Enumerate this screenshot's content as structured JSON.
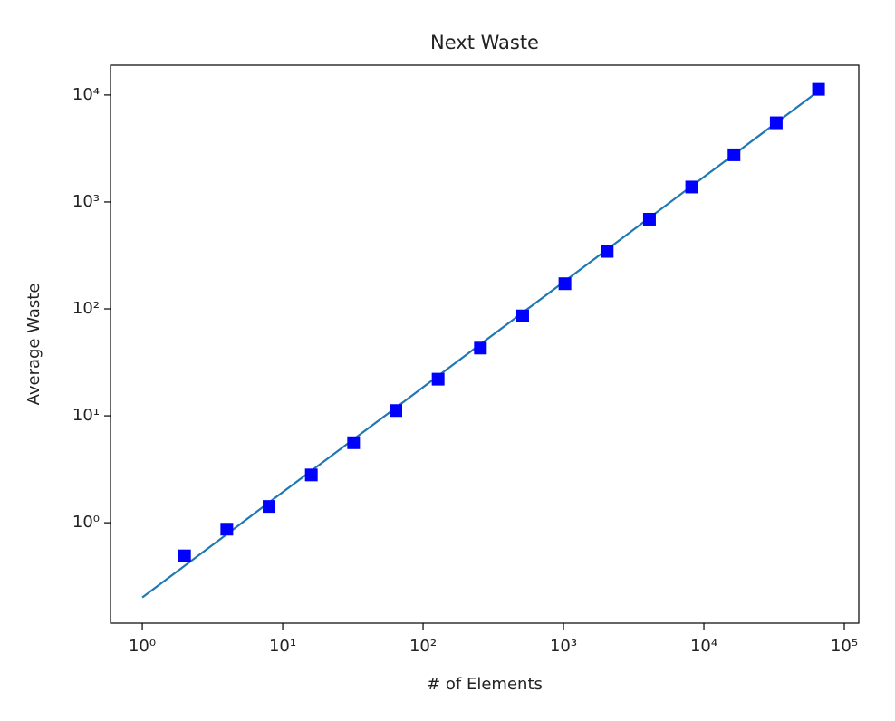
{
  "chart_data": {
    "type": "line",
    "title": "Next Waste",
    "xlabel": "# of Elements",
    "ylabel": "Average Waste",
    "xscale": "log",
    "yscale": "log",
    "xlim": [
      0.594,
      126800
    ],
    "ylim": [
      0.115,
      19000
    ],
    "xticks": [
      {
        "value": 1,
        "label": "10⁰"
      },
      {
        "value": 10,
        "label": "10¹"
      },
      {
        "value": 100,
        "label": "10²"
      },
      {
        "value": 1000,
        "label": "10³"
      },
      {
        "value": 10000,
        "label": "10⁴"
      },
      {
        "value": 100000,
        "label": "10⁵"
      }
    ],
    "yticks": [
      {
        "value": 1,
        "label": "10⁰"
      },
      {
        "value": 10,
        "label": "10¹"
      },
      {
        "value": 100,
        "label": "10²"
      },
      {
        "value": 1000,
        "label": "10³"
      },
      {
        "value": 10000,
        "label": "10⁴"
      }
    ],
    "series": [
      {
        "type": "line",
        "color": "#1f77b4",
        "x": [
          1,
          2,
          4,
          8,
          16,
          32,
          64,
          128,
          256,
          512,
          1024,
          2048,
          4096,
          8192,
          16384,
          32768,
          65536
        ],
        "values": [
          0.2,
          0.395,
          0.78,
          1.55,
          3.06,
          6.04,
          11.9,
          23.6,
          46.7,
          92.3,
          182,
          360,
          712,
          1410,
          2780,
          5500,
          10900
        ]
      },
      {
        "type": "scatter",
        "marker": "square",
        "color": "#0000ff",
        "x": [
          2,
          4,
          8,
          16,
          32,
          64,
          128,
          256,
          512,
          1024,
          2048,
          4096,
          8192,
          16384,
          32768,
          65536
        ],
        "values": [
          0.49,
          0.87,
          1.42,
          2.8,
          5.6,
          11.2,
          22,
          43,
          86,
          172,
          345,
          690,
          1380,
          2760,
          5500,
          11300
        ]
      }
    ]
  }
}
